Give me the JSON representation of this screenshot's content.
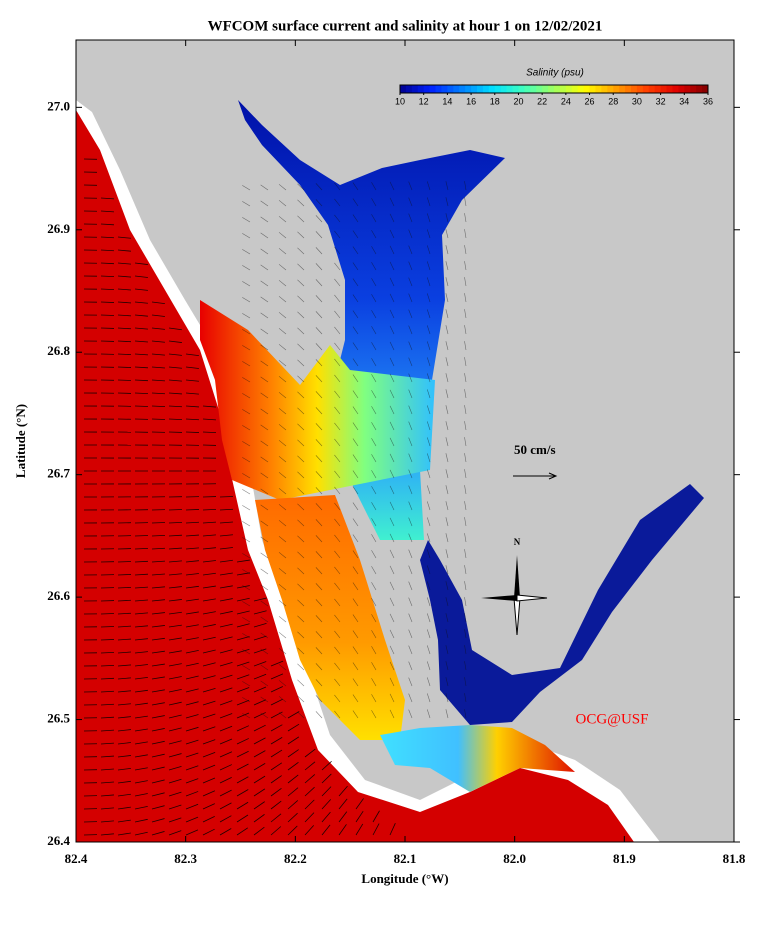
{
  "chart_data": {
    "type": "map",
    "title": "WFCOM surface current and salinity at hour 1 on 12/02/2021",
    "x_label": "Longitude (°W)",
    "y_label": "Latitude (°N)",
    "xlim": [
      82.4,
      81.8
    ],
    "xticks": [
      82.4,
      82.3,
      82.2,
      82.1,
      {
        "value": 82,
        "label": "82.0"
      },
      81.9,
      81.8
    ],
    "ylim": [
      26.4,
      27.055
    ],
    "yticks": [
      26.4,
      26.5,
      26.6,
      26.7,
      26.8,
      26.9,
      {
        "value": 27,
        "label": "27.0"
      }
    ],
    "colorbar": {
      "label": "Salinity (psu)",
      "lim": [
        10,
        36
      ],
      "ticks": [
        10,
        12,
        14,
        16,
        18,
        20,
        22,
        24,
        26,
        28,
        30,
        32,
        34,
        36
      ],
      "colormap": [
        "#00008f",
        "#0020ff",
        "#0080ff",
        "#00dfff",
        "#40ffbf",
        "#a0ff60",
        "#ffff00",
        "#ff9f00",
        "#ff4000",
        "#df0000",
        "#800000"
      ]
    },
    "annotations": {
      "scale_arrow": "50 cm/s",
      "north": "N",
      "credit": "OCG@USF"
    }
  }
}
